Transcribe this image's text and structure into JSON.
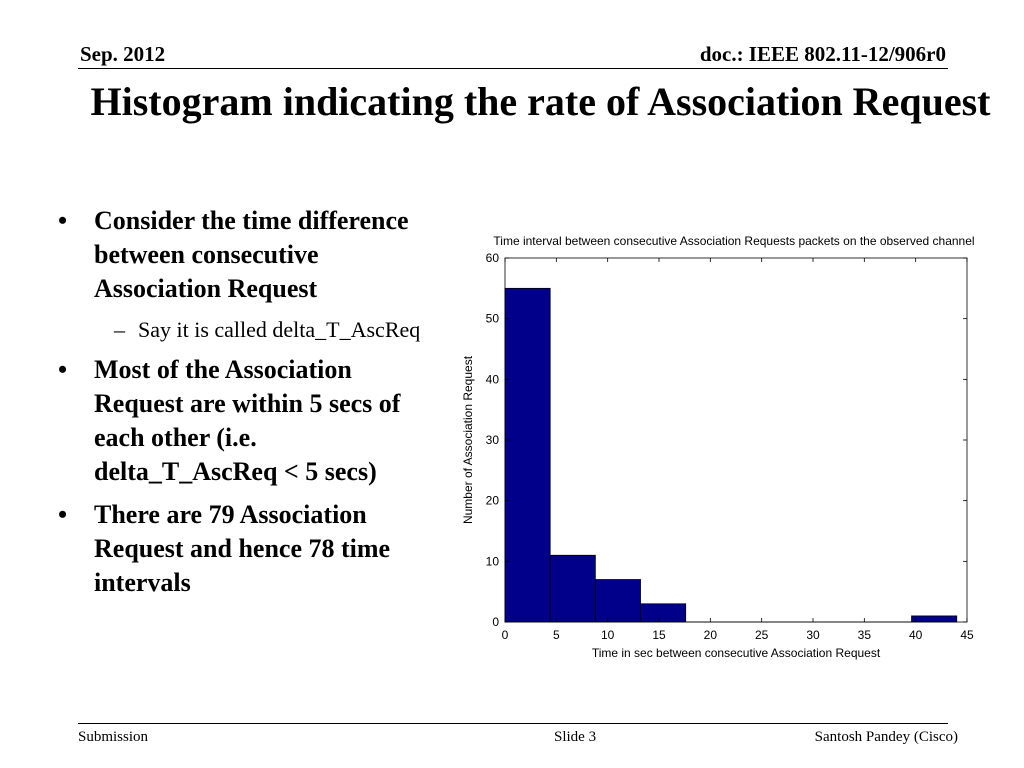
{
  "header": {
    "date": "Sep.   2012",
    "doc": "doc.: IEEE 802.11-12/906r0"
  },
  "title": "Histogram indicating the rate of Association Request",
  "bullets": [
    {
      "text": "Consider the time difference between consecutive Association Request",
      "sub": [
        "Say it is called delta_T_AscReq"
      ]
    },
    {
      "text": "Most of the Association Request are within 5 secs of each other (i.e. delta_T_AscReq < 5 secs)"
    },
    {
      "text": "There are 79 Association Request and hence 78 time intervals"
    }
  ],
  "bullet_symbol": "•",
  "sub_bullet_symbol": "–",
  "footer": {
    "left": "Submission",
    "center": "Slide 3",
    "right": "Santosh Pandey (Cisco)"
  },
  "chart_data": {
    "type": "bar",
    "title": "Time interval between consecutive Association Requests packets on the observed channel",
    "xlabel": "Time in sec between consecutive Association Request",
    "ylabel": "Number of Association Request",
    "xlim": [
      0,
      45
    ],
    "ylim": [
      0,
      60
    ],
    "xticks": [
      0,
      5,
      10,
      15,
      20,
      25,
      30,
      35,
      40,
      45
    ],
    "yticks": [
      0,
      10,
      20,
      30,
      40,
      50,
      60
    ],
    "bin_width": 4.4,
    "bins": [
      {
        "start": 0.0,
        "count": 55
      },
      {
        "start": 4.4,
        "count": 11
      },
      {
        "start": 8.8,
        "count": 7
      },
      {
        "start": 13.2,
        "count": 3
      },
      {
        "start": 17.6,
        "count": 0
      },
      {
        "start": 22.0,
        "count": 0
      },
      {
        "start": 26.4,
        "count": 0
      },
      {
        "start": 30.8,
        "count": 0
      },
      {
        "start": 35.2,
        "count": 0
      },
      {
        "start": 39.6,
        "count": 1
      }
    ],
    "bar_color": "#00008B",
    "grid": false
  }
}
